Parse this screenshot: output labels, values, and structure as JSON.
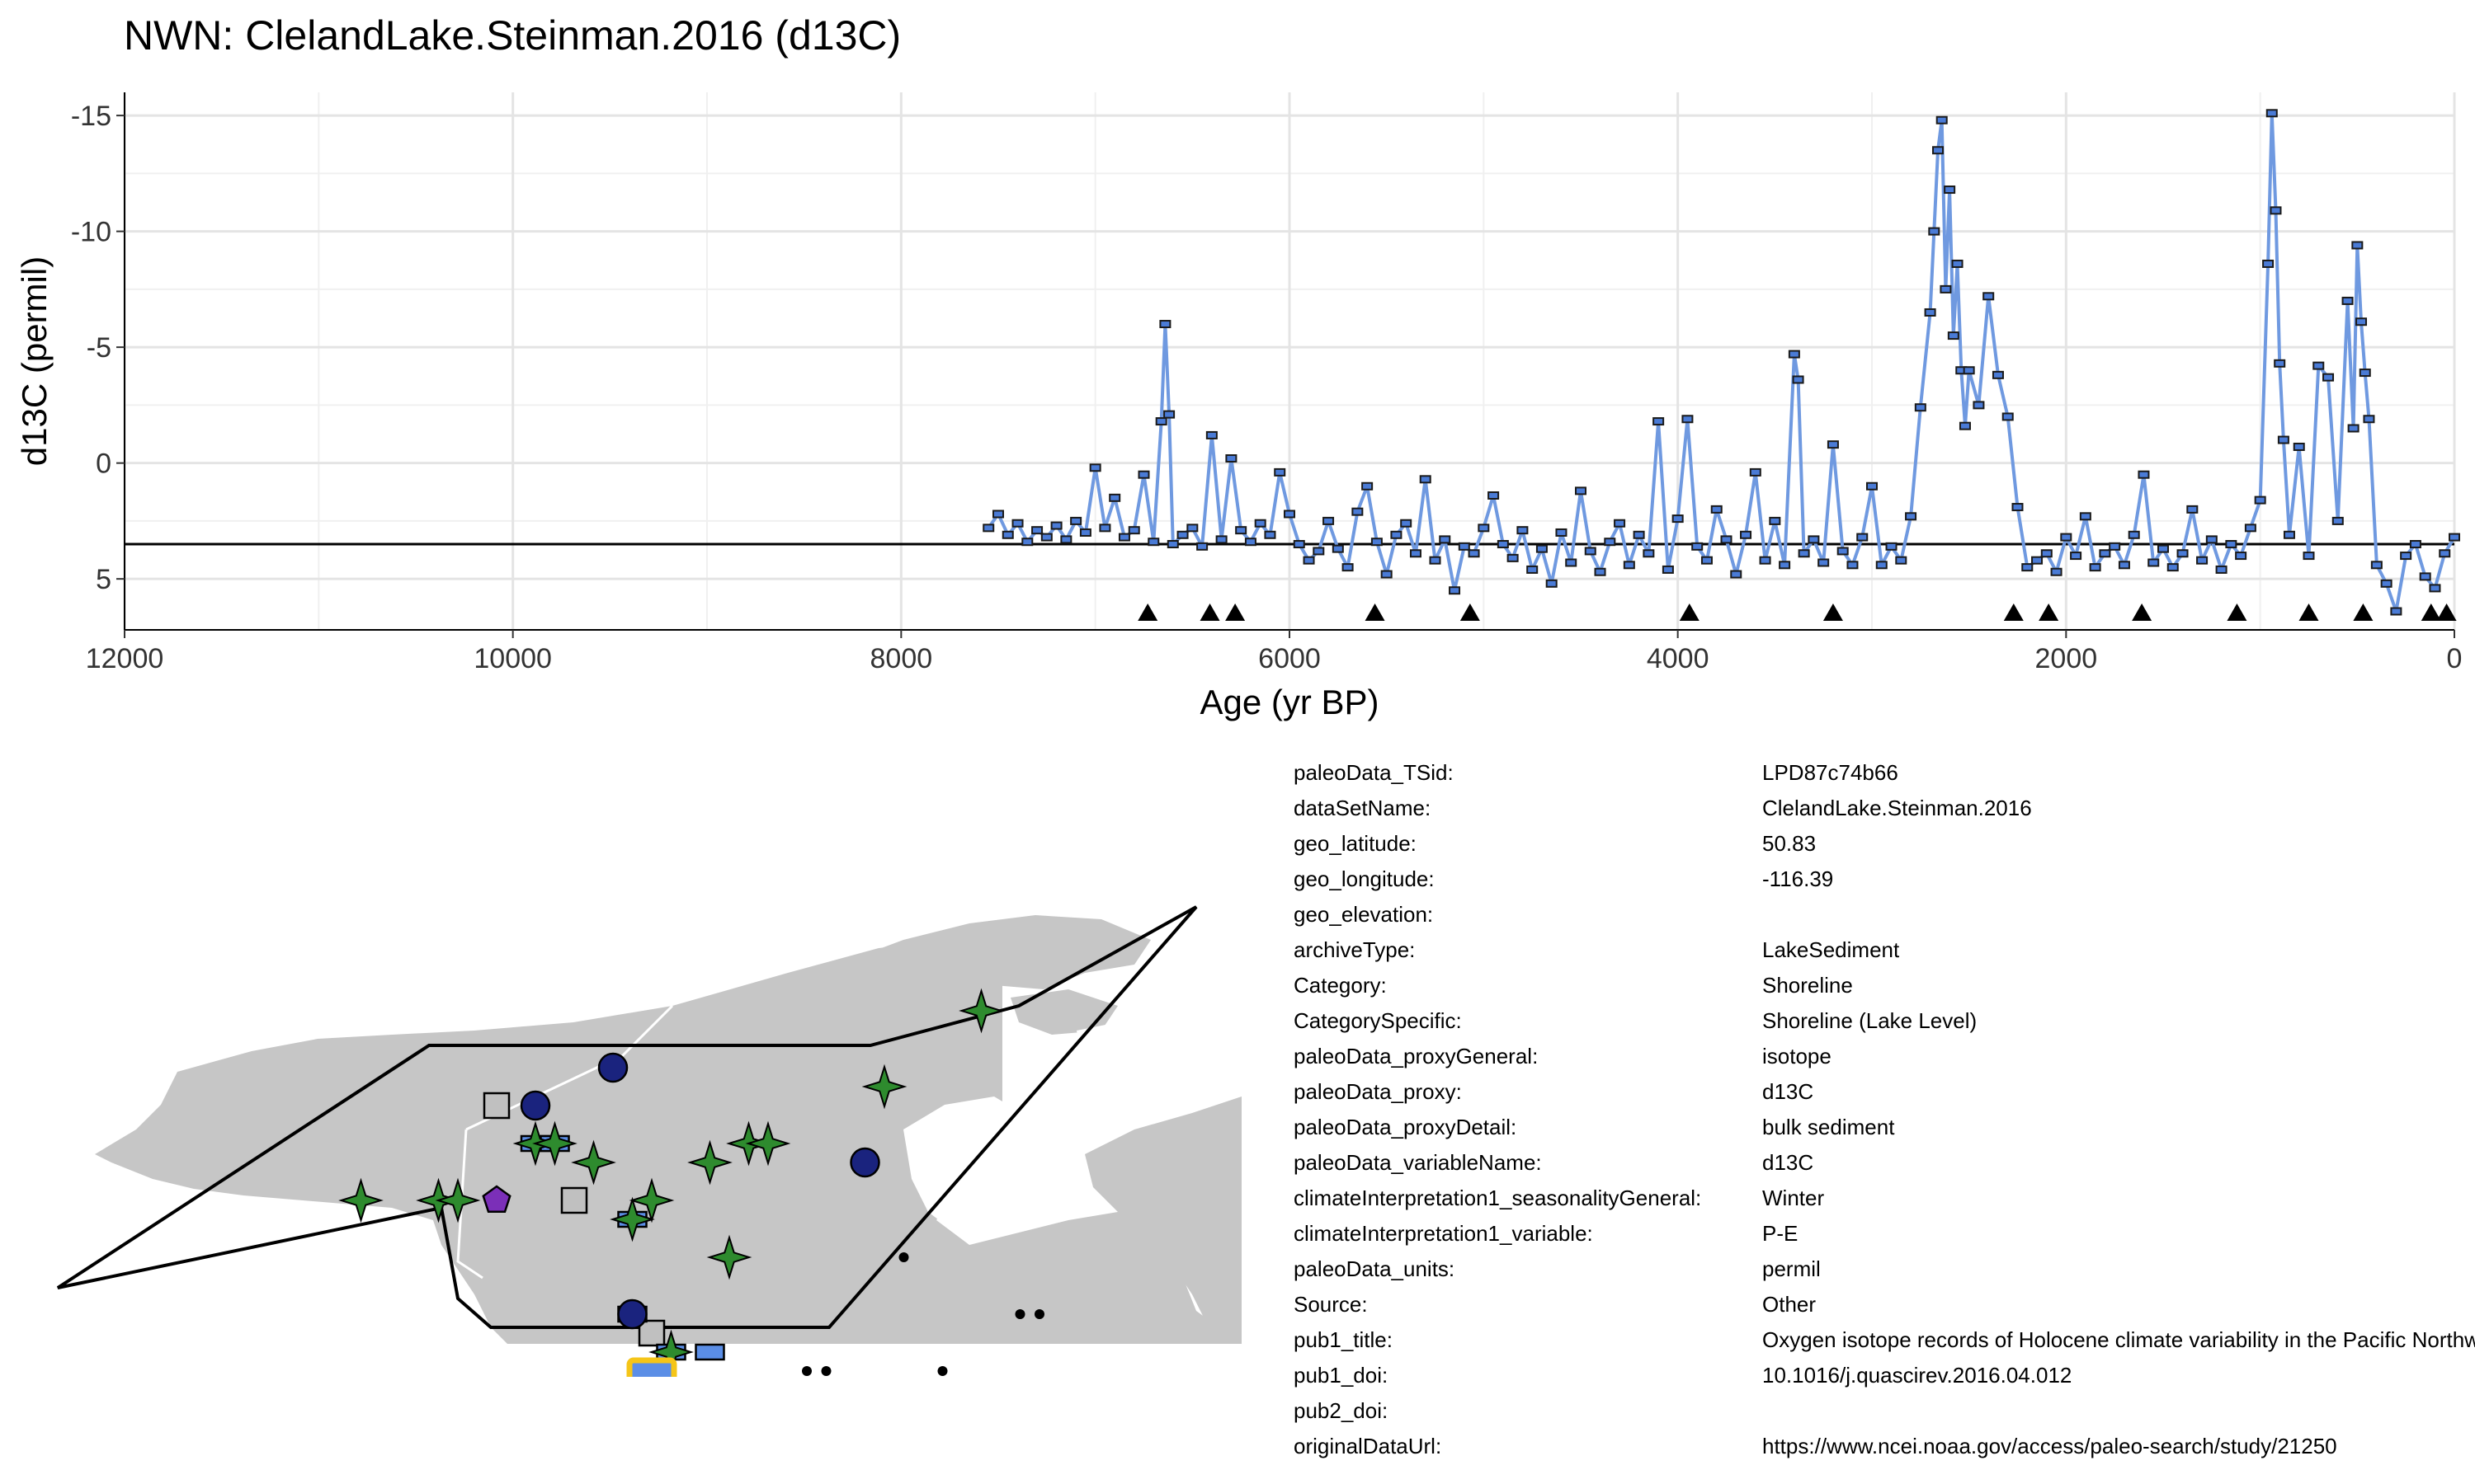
{
  "chart_data": {
    "type": "line",
    "title": "NWN: ClelandLake.Steinman.2016 (d13C)",
    "xlabel": "Age (yr BP)",
    "ylabel": "d13C (permil)",
    "xlim": [
      12000,
      0
    ],
    "ylim": [
      7.2,
      -16.0
    ],
    "x_reversed": true,
    "y_reversed": true,
    "x_ticks": [
      12000,
      10000,
      8000,
      6000,
      4000,
      2000,
      0
    ],
    "x_tick_labels": [
      "12000",
      "10000",
      "8000",
      "6000",
      "4000",
      "2000",
      "0"
    ],
    "y_ticks": [
      -15,
      -10,
      -5,
      0,
      5
    ],
    "y_tick_labels": [
      "-15",
      "-10",
      "-5",
      "0",
      "5"
    ],
    "grid": true,
    "mean_line": 3.5,
    "series": [
      {
        "color": "#6f99e0",
        "marker_color": "#4a7bd6",
        "x": [
          7550,
          7500,
          7450,
          7400,
          7350,
          7300,
          7250,
          7200,
          7150,
          7100,
          7050,
          7000,
          6950,
          6900,
          6850,
          6800,
          6750,
          6700,
          6660,
          6640,
          6620,
          6600,
          6550,
          6500,
          6450,
          6400,
          6350,
          6300,
          6250,
          6200,
          6150,
          6100,
          6050,
          6000,
          5950,
          5900,
          5850,
          5800,
          5750,
          5700,
          5650,
          5600,
          5550,
          5500,
          5450,
          5400,
          5350,
          5300,
          5250,
          5200,
          5150,
          5100,
          5050,
          5000,
          4950,
          4900,
          4850,
          4800,
          4750,
          4700,
          4650,
          4600,
          4550,
          4500,
          4450,
          4400,
          4350,
          4300,
          4250,
          4200,
          4150,
          4100,
          4050,
          4000,
          3950,
          3900,
          3850,
          3800,
          3750,
          3700,
          3650,
          3600,
          3550,
          3500,
          3450,
          3400,
          3380,
          3350,
          3300,
          3250,
          3200,
          3150,
          3100,
          3050,
          3000,
          2950,
          2900,
          2850,
          2800,
          2750,
          2700,
          2680,
          2660,
          2640,
          2620,
          2600,
          2580,
          2560,
          2540,
          2520,
          2500,
          2450,
          2400,
          2350,
          2300,
          2250,
          2200,
          2150,
          2100,
          2050,
          2000,
          1950,
          1900,
          1850,
          1800,
          1750,
          1700,
          1650,
          1600,
          1550,
          1500,
          1450,
          1400,
          1350,
          1300,
          1250,
          1200,
          1150,
          1100,
          1050,
          1000,
          960,
          940,
          920,
          900,
          880,
          850,
          800,
          750,
          700,
          650,
          600,
          550,
          520,
          500,
          480,
          460,
          440,
          400,
          350,
          300,
          250,
          200,
          150,
          100,
          50,
          0
        ],
        "y": [
          2.8,
          2.2,
          3.1,
          2.6,
          3.4,
          2.9,
          3.2,
          2.7,
          3.3,
          2.5,
          3.0,
          0.2,
          2.8,
          1.5,
          3.2,
          2.9,
          0.5,
          3.4,
          -1.8,
          -6.0,
          -2.1,
          3.5,
          3.1,
          2.8,
          3.6,
          -1.2,
          3.3,
          -0.2,
          2.9,
          3.4,
          2.6,
          3.1,
          0.4,
          2.2,
          3.5,
          4.2,
          3.8,
          2.5,
          3.7,
          4.5,
          2.1,
          1.0,
          3.4,
          4.8,
          3.1,
          2.6,
          3.9,
          0.7,
          4.2,
          3.3,
          5.5,
          3.6,
          3.9,
          2.8,
          1.4,
          3.5,
          4.1,
          2.9,
          4.6,
          3.7,
          5.2,
          3.0,
          4.3,
          1.2,
          3.8,
          4.7,
          3.4,
          2.6,
          4.4,
          3.1,
          3.9,
          -1.8,
          4.6,
          2.4,
          -1.9,
          3.6,
          4.2,
          2.0,
          3.3,
          4.8,
          3.1,
          0.4,
          4.2,
          2.5,
          4.4,
          -4.7,
          -3.6,
          3.9,
          3.3,
          4.3,
          -0.8,
          3.8,
          4.4,
          3.2,
          1.0,
          4.4,
          3.6,
          4.2,
          2.3,
          -2.4,
          -6.5,
          -10.0,
          -13.5,
          -14.8,
          -7.5,
          -11.8,
          -5.5,
          -8.6,
          -4.0,
          -1.6,
          -4.0,
          -2.5,
          -7.2,
          -3.8,
          -2.0,
          1.9,
          4.5,
          4.2,
          3.9,
          4.7,
          3.2,
          4.0,
          2.3,
          4.5,
          3.9,
          3.6,
          4.4,
          3.1,
          0.5,
          4.3,
          3.7,
          4.5,
          3.9,
          2.0,
          4.2,
          3.3,
          4.6,
          3.5,
          4.0,
          2.8,
          1.6,
          -8.6,
          -15.1,
          -10.9,
          -4.3,
          -1.0,
          3.1,
          -0.7,
          4.0,
          -4.2,
          -3.7,
          2.5,
          -7.0,
          -1.5,
          -9.4,
          -6.1,
          -3.9,
          -1.9,
          4.4,
          5.2,
          6.4,
          4.0,
          3.5,
          4.9,
          5.4,
          3.9,
          3.2
        ]
      }
    ],
    "age_markers": [
      6730,
      6410,
      6280,
      5560,
      5070,
      3940,
      3200,
      2270,
      2090,
      1610,
      1120,
      750,
      470,
      120,
      40
    ]
  },
  "metadata": [
    {
      "key": "paleoData_TSid:",
      "value": "LPD87c74b66"
    },
    {
      "key": "dataSetName:",
      "value": "ClelandLake.Steinman.2016"
    },
    {
      "key": "geo_latitude:",
      "value": "50.83"
    },
    {
      "key": "geo_longitude:",
      "value": "-116.39"
    },
    {
      "key": "geo_elevation:",
      "value": ""
    },
    {
      "key": "archiveType:",
      "value": "LakeSediment"
    },
    {
      "key": "Category:",
      "value": "Shoreline"
    },
    {
      "key": "CategorySpecific:",
      "value": "Shoreline (Lake Level)"
    },
    {
      "key": "paleoData_proxyGeneral:",
      "value": "isotope"
    },
    {
      "key": "paleoData_proxy:",
      "value": "d13C"
    },
    {
      "key": "paleoData_proxyDetail:",
      "value": "bulk sediment"
    },
    {
      "key": "paleoData_variableName:",
      "value": "d13C"
    },
    {
      "key": "climateInterpretation1_seasonalityGeneral:",
      "value": "Winter"
    },
    {
      "key": "climateInterpretation1_variable:",
      "value": "P-E"
    },
    {
      "key": "paleoData_units:",
      "value": "permil"
    },
    {
      "key": "Source:",
      "value": "Other"
    },
    {
      "key": "pub1_title:",
      "value": "Oxygen isotope records of Holocene climate variability in the Pacific Northwest"
    },
    {
      "key": "pub1_doi:",
      "value": "10.1016/j.quascirev.2016.04.012"
    },
    {
      "key": "pub2_doi:",
      "value": ""
    },
    {
      "key": "originalDataUrl:",
      "value": "https://www.ncei.noaa.gov/access/paleo-search/study/21250"
    }
  ],
  "map": {
    "colors": {
      "land": "#c6c6c6",
      "water": "#ffffff",
      "star": "#2e8b2e",
      "circle": "#1a237e",
      "square": "#c0c0c0",
      "rect": "#5b8ee6",
      "pentagon": "#7b2fb8",
      "highlight": "#f5c518",
      "dot": "#000000"
    },
    "symbols": [
      {
        "shape": "star",
        "lon": -131,
        "lat": 60
      },
      {
        "shape": "star",
        "lon": -127,
        "lat": 60
      },
      {
        "shape": "star",
        "lon": -126,
        "lat": 60
      },
      {
        "shape": "star",
        "lon": -122,
        "lat": 63
      },
      {
        "shape": "star",
        "lon": -121,
        "lat": 63
      },
      {
        "shape": "star",
        "lon": -119,
        "lat": 62
      },
      {
        "shape": "star",
        "lon": -117,
        "lat": 59
      },
      {
        "shape": "star",
        "lon": -116,
        "lat": 60
      },
      {
        "shape": "star",
        "lon": -113,
        "lat": 62
      },
      {
        "shape": "star",
        "lon": -111,
        "lat": 63
      },
      {
        "shape": "star",
        "lon": -110,
        "lat": 63
      },
      {
        "shape": "star",
        "lon": -112,
        "lat": 57
      },
      {
        "shape": "star",
        "lon": -115,
        "lat": 52
      },
      {
        "shape": "star",
        "lon": -104,
        "lat": 66
      },
      {
        "shape": "star",
        "lon": -99,
        "lat": 70
      },
      {
        "shape": "circle",
        "lon": -122,
        "lat": 65
      },
      {
        "shape": "circle",
        "lon": -118,
        "lat": 67
      },
      {
        "shape": "circle",
        "lon": -105,
        "lat": 62
      },
      {
        "shape": "circle",
        "lon": -117,
        "lat": 54
      },
      {
        "shape": "square",
        "lon": -124,
        "lat": 65
      },
      {
        "shape": "square",
        "lon": -120,
        "lat": 60
      },
      {
        "shape": "square",
        "lon": -116,
        "lat": 53
      },
      {
        "shape": "rect",
        "lon": -122,
        "lat": 63
      },
      {
        "shape": "rect",
        "lon": -121,
        "lat": 63
      },
      {
        "shape": "rect",
        "lon": -117,
        "lat": 59
      },
      {
        "shape": "rect",
        "lon": -117,
        "lat": 54
      },
      {
        "shape": "rect",
        "lon": -115,
        "lat": 52
      },
      {
        "shape": "rect",
        "lon": -113,
        "lat": 52
      },
      {
        "shape": "pentagon",
        "lon": -124,
        "lat": 60
      },
      {
        "shape": "highlight",
        "lon": -116,
        "lat": 51
      },
      {
        "shape": "dot",
        "lon": -103,
        "lat": 57
      },
      {
        "shape": "dot",
        "lon": -97,
        "lat": 54
      },
      {
        "shape": "dot",
        "lon": -96,
        "lat": 54
      },
      {
        "shape": "dot",
        "lon": -108,
        "lat": 51
      },
      {
        "shape": "dot",
        "lon": -107,
        "lat": 51
      },
      {
        "shape": "dot",
        "lon": -109,
        "lat": 50
      },
      {
        "shape": "dot",
        "lon": -107,
        "lat": 50
      },
      {
        "shape": "dot",
        "lon": -101,
        "lat": 51
      },
      {
        "shape": "dot",
        "lon": -98,
        "lat": 50
      },
      {
        "shape": "dot",
        "lon": -118,
        "lat": 50
      },
      {
        "shape": "dot",
        "lon": -117,
        "lat": 50
      },
      {
        "shape": "dot",
        "lon": -116,
        "lat": 50
      }
    ]
  }
}
